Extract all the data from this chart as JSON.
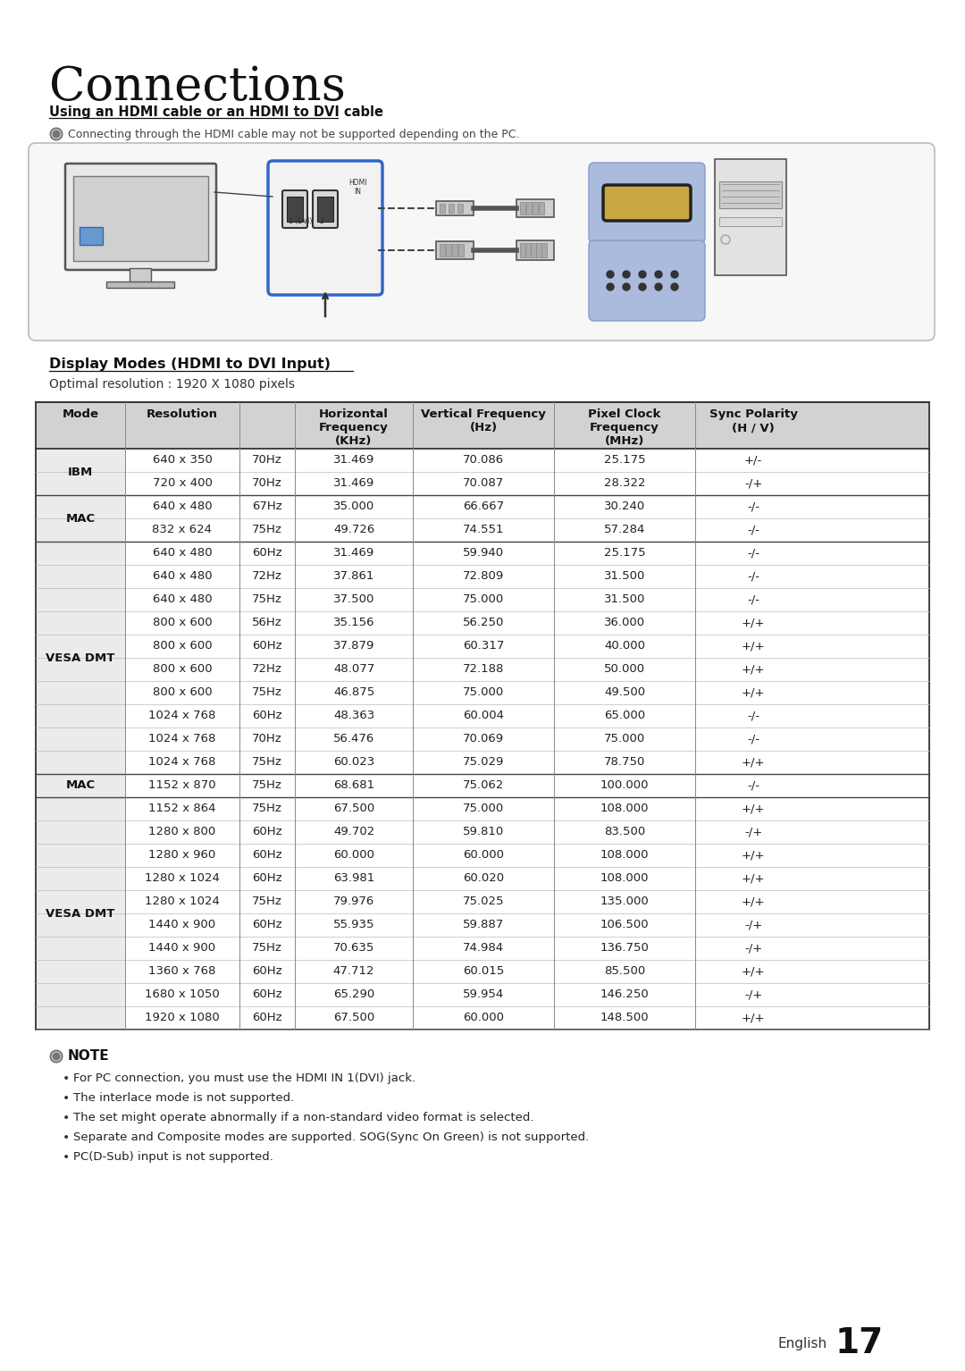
{
  "title": "Connections",
  "section_title": "Using an HDMI cable or an HDMI to DVI cable",
  "connection_note": "Connecting through the HDMI cable may not be supported depending on the PC.",
  "table_section_title": "Display Modes (HDMI to DVI Input)",
  "optimal_resolution": "Optimal resolution : 1920 X 1080 pixels",
  "table_rows": [
    [
      "IBM",
      "640 x 350",
      "70Hz",
      "31.469",
      "70.086",
      "25.175",
      "+/-"
    ],
    [
      "",
      "720 x 400",
      "70Hz",
      "31.469",
      "70.087",
      "28.322",
      "-/+"
    ],
    [
      "MAC",
      "640 x 480",
      "67Hz",
      "35.000",
      "66.667",
      "30.240",
      "-/-"
    ],
    [
      "",
      "832 x 624",
      "75Hz",
      "49.726",
      "74.551",
      "57.284",
      "-/-"
    ],
    [
      "VESA DMT",
      "640 x 480",
      "60Hz",
      "31.469",
      "59.940",
      "25.175",
      "-/-"
    ],
    [
      "",
      "640 x 480",
      "72Hz",
      "37.861",
      "72.809",
      "31.500",
      "-/-"
    ],
    [
      "",
      "640 x 480",
      "75Hz",
      "37.500",
      "75.000",
      "31.500",
      "-/-"
    ],
    [
      "",
      "800 x 600",
      "56Hz",
      "35.156",
      "56.250",
      "36.000",
      "+/+"
    ],
    [
      "",
      "800 x 600",
      "60Hz",
      "37.879",
      "60.317",
      "40.000",
      "+/+"
    ],
    [
      "",
      "800 x 600",
      "72Hz",
      "48.077",
      "72.188",
      "50.000",
      "+/+"
    ],
    [
      "",
      "800 x 600",
      "75Hz",
      "46.875",
      "75.000",
      "49.500",
      "+/+"
    ],
    [
      "",
      "1024 x 768",
      "60Hz",
      "48.363",
      "60.004",
      "65.000",
      "-/-"
    ],
    [
      "",
      "1024 x 768",
      "70Hz",
      "56.476",
      "70.069",
      "75.000",
      "-/-"
    ],
    [
      "",
      "1024 x 768",
      "75Hz",
      "60.023",
      "75.029",
      "78.750",
      "+/+"
    ],
    [
      "MAC",
      "1152 x 870",
      "75Hz",
      "68.681",
      "75.062",
      "100.000",
      "-/-"
    ],
    [
      "VESA DMT",
      "1152 x 864",
      "75Hz",
      "67.500",
      "75.000",
      "108.000",
      "+/+"
    ],
    [
      "",
      "1280 x 800",
      "60Hz",
      "49.702",
      "59.810",
      "83.500",
      "-/+"
    ],
    [
      "",
      "1280 x 960",
      "60Hz",
      "60.000",
      "60.000",
      "108.000",
      "+/+"
    ],
    [
      "",
      "1280 x 1024",
      "60Hz",
      "63.981",
      "60.020",
      "108.000",
      "+/+"
    ],
    [
      "",
      "1280 x 1024",
      "75Hz",
      "79.976",
      "75.025",
      "135.000",
      "+/+"
    ],
    [
      "",
      "1440 x 900",
      "60Hz",
      "55.935",
      "59.887",
      "106.500",
      "-/+"
    ],
    [
      "",
      "1440 x 900",
      "75Hz",
      "70.635",
      "74.984",
      "136.750",
      "-/+"
    ],
    [
      "",
      "1360 x 768",
      "60Hz",
      "47.712",
      "60.015",
      "85.500",
      "+/+"
    ],
    [
      "",
      "1680 x 1050",
      "60Hz",
      "65.290",
      "59.954",
      "146.250",
      "-/+"
    ],
    [
      "",
      "1920 x 1080",
      "60Hz",
      "67.500",
      "60.000",
      "148.500",
      "+/+"
    ]
  ],
  "note_bullets": [
    "For PC connection, you must use the HDMI IN 1(DVI) jack.",
    "The interlace mode is not supported.",
    "The set might operate abnormally if a non-standard video format is selected.",
    "Separate and Composite modes are supported. SOG(Sync On Green) is not supported.",
    "PC(D-Sub) input is not supported."
  ],
  "footer_text": "English",
  "footer_page": "17",
  "bg_color": "#ffffff",
  "header_bg": "#d0d0d0",
  "table_border_color": "#333333",
  "row_line_color": "#aaaaaa",
  "blue_highlight": "#6699cc",
  "purple_highlight": "#9999cc"
}
